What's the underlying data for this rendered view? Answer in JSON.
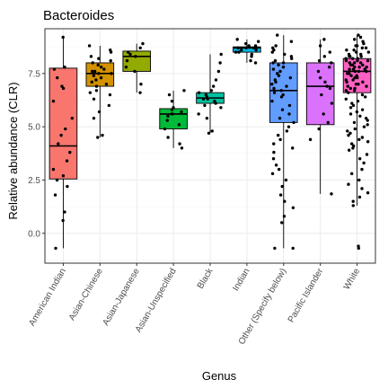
{
  "chart_data": {
    "type": "box",
    "title": "Bacteroides",
    "xlabel": "Genus",
    "ylabel": "Relative abundance (CLR)",
    "ylim": [
      -1.4,
      9.6
    ],
    "yticks": [
      0.0,
      2.5,
      5.0,
      7.5
    ],
    "ytick_labels": [
      "0.0",
      "2.5",
      "5.0",
      "7.5"
    ],
    "grid": true,
    "categories": [
      "American Indian",
      "Asian-Chinese",
      "Asian-Japanese",
      "Asian-Unspecified",
      "Black",
      "Indian",
      "Other (Specify below)",
      "Pacific Islander",
      "White"
    ],
    "colors": [
      "#F8766D",
      "#D39200",
      "#93AA00",
      "#00BA38",
      "#00C19F",
      "#00B9E3",
      "#619CFF",
      "#DB72FB",
      "#FF61C3"
    ],
    "boxes": [
      {
        "min": -0.7,
        "q1": 2.55,
        "median": 4.1,
        "q3": 7.75,
        "max": 9.2
      },
      {
        "min": 4.5,
        "q1": 6.9,
        "median": 7.5,
        "q3": 8.0,
        "max": 8.8
      },
      {
        "min": 6.6,
        "q1": 7.6,
        "median": 8.3,
        "q3": 8.55,
        "max": 8.9
      },
      {
        "min": 4.0,
        "q1": 4.9,
        "median": 5.6,
        "q3": 5.85,
        "max": 6.7
      },
      {
        "min": 4.7,
        "q1": 6.1,
        "median": 6.35,
        "q3": 6.6,
        "max": 8.4
      },
      {
        "min": 8.0,
        "q1": 8.5,
        "median": 8.7,
        "q3": 8.75,
        "max": 9.1
      },
      {
        "min": -0.7,
        "q1": 5.2,
        "median": 6.7,
        "q3": 8.0,
        "max": 9.3
      },
      {
        "min": 1.85,
        "q1": 5.1,
        "median": 6.9,
        "q3": 8.0,
        "max": 9.1
      },
      {
        "min": 1.3,
        "q1": 6.6,
        "median": 7.6,
        "q3": 8.2,
        "max": 9.3
      }
    ],
    "points": [
      [
        9.2,
        7.8,
        7.7,
        7.3,
        6.9,
        6.8,
        6.2,
        5.4,
        4.9,
        4.6,
        4.2,
        3.8,
        3.4,
        3.0,
        2.7,
        2.5,
        2.2,
        1.8,
        1.0,
        0.6,
        -0.7
      ],
      [
        8.8,
        8.6,
        8.5,
        8.3,
        8.2,
        8.1,
        8.0,
        7.9,
        7.8,
        7.7,
        7.6,
        7.6,
        7.5,
        7.5,
        7.4,
        7.3,
        7.2,
        7.1,
        7.0,
        6.9,
        6.7,
        6.6,
        6.5,
        6.3,
        6.0,
        5.7,
        5.4,
        4.6,
        4.5
      ],
      [
        8.9,
        8.7,
        8.5,
        8.4,
        8.3,
        8.1,
        7.8,
        7.6,
        7.0,
        6.6
      ],
      [
        6.7,
        6.5,
        6.2,
        5.9,
        5.8,
        5.7,
        5.6,
        5.6,
        5.5,
        5.3,
        5.1,
        4.9,
        4.5,
        4.2,
        4.0
      ],
      [
        8.4,
        8.0,
        7.6,
        7.2,
        6.9,
        6.7,
        6.6,
        6.5,
        6.4,
        6.3,
        6.3,
        6.2,
        6.1,
        6.0,
        5.9,
        5.6,
        5.4,
        4.8,
        4.7
      ],
      [
        9.1,
        9.0,
        8.9,
        8.8,
        8.8,
        8.7,
        8.7,
        8.7,
        8.6,
        8.6,
        8.5,
        8.5,
        8.4,
        8.3,
        8.1,
        8.0
      ],
      [
        9.3,
        9.0,
        8.8,
        8.7,
        8.6,
        8.5,
        8.4,
        8.3,
        8.2,
        8.1,
        8.0,
        8.0,
        7.9,
        7.8,
        7.7,
        7.6,
        7.5,
        7.4,
        7.3,
        7.2,
        7.1,
        7.0,
        6.9,
        6.8,
        6.7,
        6.6,
        6.5,
        6.4,
        6.2,
        6.0,
        5.8,
        5.6,
        5.4,
        5.2,
        5.0,
        4.8,
        4.6,
        4.4,
        4.2,
        4.0,
        3.8,
        3.5,
        3.2,
        3.0,
        2.8,
        2.5,
        2.2,
        1.8,
        1.5,
        1.2,
        0.8,
        0.5,
        -0.7,
        -0.7
      ],
      [
        9.1,
        8.8,
        8.5,
        8.3,
        8.1,
        8.0,
        7.8,
        7.6,
        7.3,
        7.1,
        6.9,
        6.8,
        6.5,
        6.1,
        5.6,
        5.2,
        4.9,
        4.4,
        1.85
      ],
      [
        9.3,
        9.2,
        9.1,
        9.0,
        8.9,
        8.8,
        8.8,
        8.7,
        8.7,
        8.6,
        8.6,
        8.5,
        8.5,
        8.4,
        8.4,
        8.3,
        8.3,
        8.3,
        8.2,
        8.2,
        8.2,
        8.1,
        8.1,
        8.1,
        8.0,
        8.0,
        8.0,
        7.9,
        7.9,
        7.9,
        7.8,
        7.8,
        7.8,
        7.7,
        7.7,
        7.7,
        7.6,
        7.6,
        7.6,
        7.5,
        7.5,
        7.4,
        7.4,
        7.3,
        7.3,
        7.2,
        7.2,
        7.1,
        7.1,
        7.0,
        7.0,
        6.9,
        6.9,
        6.8,
        6.8,
        6.7,
        6.7,
        6.6,
        6.5,
        6.4,
        6.3,
        6.2,
        6.1,
        6.0,
        5.9,
        5.8,
        5.7,
        5.6,
        5.5,
        5.4,
        5.3,
        5.2,
        5.1,
        5.0,
        4.9,
        4.8,
        4.7,
        4.6,
        4.5,
        4.4,
        4.3,
        4.2,
        4.1,
        4.0,
        3.9,
        3.7,
        3.5,
        3.3,
        3.0,
        2.8,
        2.5,
        2.3,
        2.1,
        1.9,
        1.7,
        1.5,
        1.3,
        -0.6,
        -0.7
      ]
    ]
  }
}
